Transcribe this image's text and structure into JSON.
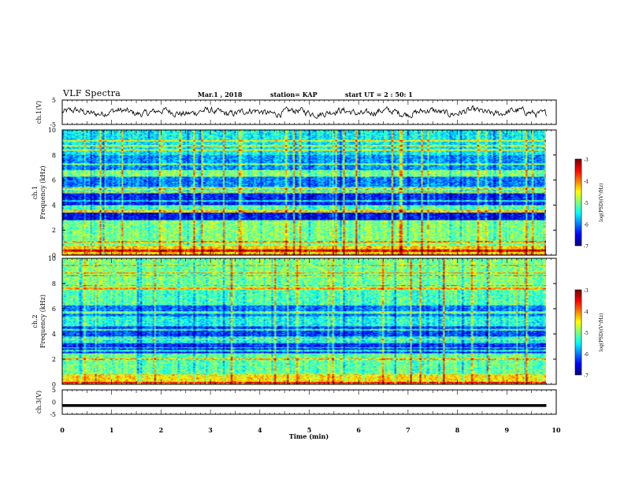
{
  "header": {
    "title": "VLF Spectra",
    "date": "Mar.1  , 2018",
    "station": "station= KAP",
    "start": "start  UT =   2 : 50: 1"
  },
  "chart_data": [
    {
      "type": "line",
      "panel": "waveform-ch1",
      "ylabel": "ch.1(V)",
      "ylim": [
        -5,
        5
      ],
      "yticks": [
        "5",
        "-5"
      ],
      "xlim": [
        0,
        10
      ],
      "note_values": "noisy waveform centered near 0 V, amplitude roughly ±1.5 V, spanning 0–9.8 min"
    },
    {
      "type": "heatmap",
      "panel": "spectrogram-ch1",
      "ylabel": "ch.1\nFrequency (kHz)",
      "ylabel_line1": "ch.1",
      "ylabel_line2": "Frequency  (kHz)",
      "ylim": [
        0,
        10
      ],
      "yticks": [
        "0",
        "2",
        "4",
        "6",
        "8",
        "10"
      ],
      "xlim": [
        0,
        9.8
      ],
      "colorbar": {
        "label": "log(PSD)(V²/Hz)",
        "range": [
          -7,
          -3
        ],
        "ticks": [
          "-3",
          "-4",
          "-5",
          "-6",
          "-7"
        ]
      },
      "bands_log_psd": [
        {
          "f": [
            0,
            0.7
          ],
          "level": -4.3
        },
        {
          "f": [
            0.7,
            2.8
          ],
          "level": -5.0
        },
        {
          "f": [
            2.8,
            3.4
          ],
          "level": -6.5
        },
        {
          "f": [
            3.4,
            4.0
          ],
          "level": -5.2
        },
        {
          "f": [
            4.0,
            5.0
          ],
          "level": -6.4
        },
        {
          "f": [
            5.0,
            5.5
          ],
          "level": -5.3
        },
        {
          "f": [
            5.5,
            6.3
          ],
          "level": -6.0
        },
        {
          "f": [
            6.3,
            6.8
          ],
          "level": -5.0
        },
        {
          "f": [
            6.8,
            8.0
          ],
          "level": -5.9
        },
        {
          "f": [
            8.0,
            10.0
          ],
          "level": -5.5
        }
      ]
    },
    {
      "type": "heatmap",
      "panel": "spectrogram-ch2",
      "ylabel_line1": "ch.2",
      "ylabel_line2": "Frequency  (kHz)",
      "ylim": [
        0,
        10
      ],
      "yticks": [
        "0",
        "2",
        "4",
        "6",
        "8",
        "10"
      ],
      "xlim": [
        0,
        9.8
      ],
      "colorbar": {
        "label": "log(PSD)(V²/Hz)",
        "range": [
          -7,
          -3
        ],
        "ticks": [
          "-3",
          "-4",
          "-5",
          "-6",
          "-7"
        ]
      },
      "bands_log_psd": [
        {
          "f": [
            0,
            0.8
          ],
          "level": -4.4
        },
        {
          "f": [
            0.8,
            2.5
          ],
          "level": -5.1
        },
        {
          "f": [
            2.5,
            3.3
          ],
          "level": -6.3
        },
        {
          "f": [
            3.3,
            3.8
          ],
          "level": -5.4
        },
        {
          "f": [
            3.8,
            4.6
          ],
          "level": -6.2
        },
        {
          "f": [
            4.6,
            5.4
          ],
          "level": -5.4
        },
        {
          "f": [
            5.4,
            6.3
          ],
          "level": -6.0
        },
        {
          "f": [
            6.3,
            7.5
          ],
          "level": -5.2
        },
        {
          "f": [
            7.5,
            10.0
          ],
          "level": -5.0
        }
      ]
    },
    {
      "type": "line",
      "panel": "waveform-ch3",
      "ylabel": "ch.3(V)",
      "ylim": [
        -5,
        5
      ],
      "yticks": [
        "5",
        "0",
        "-5"
      ],
      "xlabel": "Time  (min)",
      "xlim": [
        0,
        10
      ],
      "xticks": [
        "0",
        "1",
        "2",
        "3",
        "4",
        "5",
        "6",
        "7",
        "8",
        "9",
        "10"
      ],
      "note_values": "flat line at approximately -1.4 V from 0 to 9.8 min"
    }
  ]
}
